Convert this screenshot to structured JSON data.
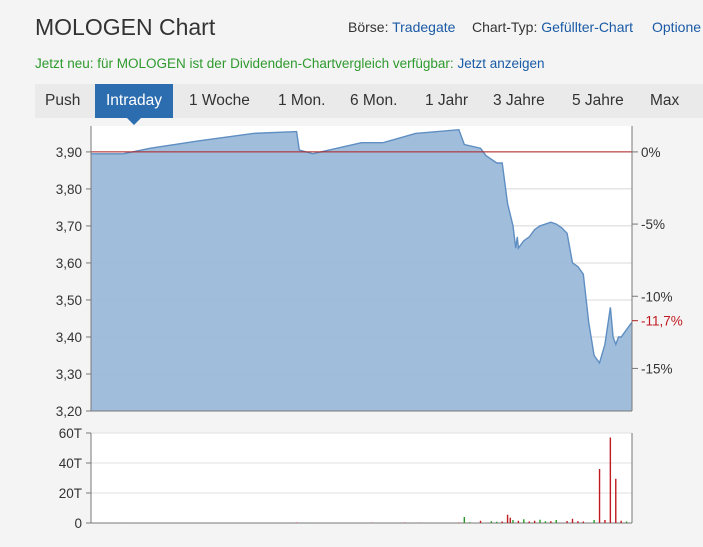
{
  "header": {
    "title": "MOLOGEN Chart",
    "exchange_label": "Börse:",
    "exchange_value": "Tradegate",
    "charttype_label": "Chart-Typ:",
    "charttype_value": "Gefüllter-Chart",
    "options_label": "Optione"
  },
  "notice": {
    "text": "Jetzt neu: für MOLOGEN ist der Dividenden-Chartvergleich verfügbar:",
    "link": "Jetzt anzeigen"
  },
  "tabs": [
    "Push",
    "Intraday",
    "1 Woche",
    "1 Mon.",
    "6 Mon.",
    "1 Jahr",
    "3 Jahre",
    "5 Jahre",
    "Max"
  ],
  "active_tab": "Intraday",
  "colors": {
    "area_fill": "#9bbbd9",
    "area_line": "#5f8ec2",
    "reference_line": "#b01e1e",
    "active_tab": "#2c6db0",
    "volume_up": "#2a9a2a",
    "volume_down": "#c0191f"
  },
  "chart_data": [
    {
      "type": "area",
      "x_unit": "intraday time index (0 = open, 100 = last)",
      "x": [
        0,
        6,
        11,
        20,
        30,
        38,
        38.5,
        41,
        44,
        50,
        54,
        60,
        68,
        69,
        72,
        73,
        75,
        76,
        77,
        78,
        78.5,
        78.8,
        79,
        80,
        81,
        82,
        83,
        84,
        85,
        86,
        87,
        88,
        89,
        90,
        91,
        92,
        93,
        94,
        95,
        96,
        96.5,
        97,
        97.5,
        98,
        98.5,
        99,
        100
      ],
      "y": [
        3.895,
        3.895,
        3.91,
        3.93,
        3.95,
        3.955,
        3.905,
        3.895,
        3.905,
        3.925,
        3.925,
        3.95,
        3.96,
        3.92,
        3.91,
        3.89,
        3.87,
        3.87,
        3.76,
        3.7,
        3.64,
        3.67,
        3.64,
        3.66,
        3.67,
        3.69,
        3.7,
        3.705,
        3.71,
        3.705,
        3.695,
        3.68,
        3.6,
        3.59,
        3.57,
        3.44,
        3.35,
        3.33,
        3.38,
        3.48,
        3.4,
        3.38,
        3.4,
        3.4,
        3.41,
        3.42,
        3.44
      ],
      "ylim": [
        3.2,
        3.97
      ],
      "y_ticks": [
        "3,20",
        "3,30",
        "3,40",
        "3,50",
        "3,60",
        "3,70",
        "3,80",
        "3,90"
      ],
      "y_tick_values": [
        3.2,
        3.3,
        3.4,
        3.5,
        3.6,
        3.7,
        3.8,
        3.9
      ],
      "reference_value": 3.9,
      "y_right_ticks": [
        "0%",
        "-5%",
        "-10%",
        "-15%"
      ],
      "y_right_tick_values": [
        3.9,
        3.705,
        3.51,
        3.315
      ],
      "last_change": "-11,7%",
      "last_change_value": 3.444,
      "grid": true
    },
    {
      "type": "bar",
      "x_unit": "intraday time index (0 = open, 100 = last)",
      "ylim": [
        0,
        60000
      ],
      "y_ticks": [
        "0",
        "20T",
        "40T",
        "60T"
      ],
      "y_tick_values": [
        0,
        20000,
        40000,
        60000
      ],
      "bars": [
        {
          "x": 6,
          "v": 200,
          "dir": "up"
        },
        {
          "x": 38,
          "v": 300,
          "dir": "down"
        },
        {
          "x": 40,
          "v": 250,
          "dir": "up"
        },
        {
          "x": 52,
          "v": 200,
          "dir": "down"
        },
        {
          "x": 58,
          "v": 300,
          "dir": "down"
        },
        {
          "x": 61,
          "v": 200,
          "dir": "down"
        },
        {
          "x": 68,
          "v": 300,
          "dir": "down"
        },
        {
          "x": 69,
          "v": 4000,
          "dir": "up"
        },
        {
          "x": 70,
          "v": 500,
          "dir": "up"
        },
        {
          "x": 72,
          "v": 1500,
          "dir": "down"
        },
        {
          "x": 74,
          "v": 1200,
          "dir": "up"
        },
        {
          "x": 75,
          "v": 800,
          "dir": "up"
        },
        {
          "x": 76,
          "v": 1000,
          "dir": "down"
        },
        {
          "x": 77,
          "v": 5500,
          "dir": "down"
        },
        {
          "x": 77.5,
          "v": 3500,
          "dir": "down"
        },
        {
          "x": 78,
          "v": 2000,
          "dir": "up"
        },
        {
          "x": 79,
          "v": 1500,
          "dir": "down"
        },
        {
          "x": 80,
          "v": 2500,
          "dir": "up"
        },
        {
          "x": 81,
          "v": 1000,
          "dir": "down"
        },
        {
          "x": 82,
          "v": 1500,
          "dir": "down"
        },
        {
          "x": 83,
          "v": 2200,
          "dir": "up"
        },
        {
          "x": 84,
          "v": 1200,
          "dir": "up"
        },
        {
          "x": 85,
          "v": 1200,
          "dir": "down"
        },
        {
          "x": 86,
          "v": 2000,
          "dir": "up"
        },
        {
          "x": 88,
          "v": 1300,
          "dir": "down"
        },
        {
          "x": 89,
          "v": 2800,
          "dir": "down"
        },
        {
          "x": 90,
          "v": 1200,
          "dir": "down"
        },
        {
          "x": 91,
          "v": 1000,
          "dir": "down"
        },
        {
          "x": 93,
          "v": 2000,
          "dir": "up"
        },
        {
          "x": 94,
          "v": 36000,
          "dir": "down"
        },
        {
          "x": 95,
          "v": 2000,
          "dir": "down"
        },
        {
          "x": 96,
          "v": 57000,
          "dir": "down"
        },
        {
          "x": 97,
          "v": 29500,
          "dir": "down"
        },
        {
          "x": 98,
          "v": 1500,
          "dir": "down"
        },
        {
          "x": 99,
          "v": 1000,
          "dir": "up"
        }
      ]
    }
  ]
}
